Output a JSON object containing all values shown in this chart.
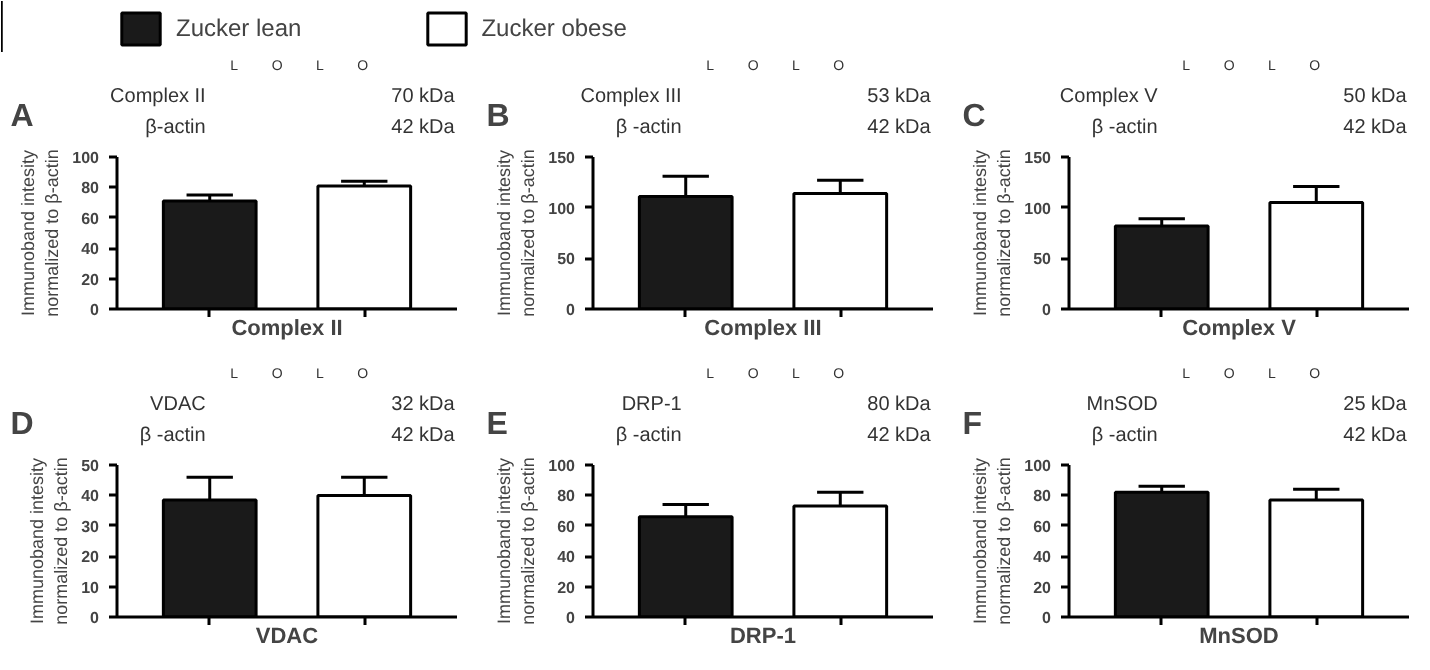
{
  "chart_data": [
    {
      "type": "bar",
      "title": "A",
      "xlabel": "Complex II",
      "ylabel": "Immunoband intesity\nnormalized to β-actin",
      "categories": [
        null,
        null
      ],
      "legend": "top",
      "series": [
        {
          "name": "Zucker lean",
          "color": "#1a1a1a",
          "values": [
            71,
            null
          ],
          "errors": [
            [
              71,
              75
            ],
            null
          ]
        },
        {
          "name": "Zucker obese",
          "color": "#ffffff",
          "values": [
            null,
            81
          ],
          "errors": [
            null,
            [
              81,
              84
            ]
          ]
        }
      ],
      "ylim": [
        0,
        100
      ],
      "yticks": [
        0,
        20,
        40,
        60,
        80,
        100
      ],
      "annotations": [
        "Complex II",
        "β-actin",
        "70 kDa",
        "42 kDa",
        "L",
        "O",
        "L",
        "O"
      ]
    },
    {
      "type": "bar",
      "title": "B",
      "xlabel": "Complex III",
      "ylabel": "Immunoband intesity\nnormalized to β-actin",
      "categories": [
        null,
        null
      ],
      "series": [
        {
          "color": "#1a1a1a",
          "values": [
            111,
            null
          ],
          "errors": [
            [
              111,
              131
            ],
            null
          ]
        },
        {
          "color": "#ffffff",
          "values": [
            null,
            114
          ],
          "errors": [
            null,
            [
              114,
              127
            ]
          ]
        }
      ],
      "ylim": [
        0,
        150
      ],
      "yticks": [
        0,
        50,
        100,
        150
      ],
      "annotations": [
        "Complex III",
        "β -actin",
        "53 kDa",
        "42 kDa",
        "L",
        "O",
        "L",
        "O"
      ]
    },
    {
      "type": "bar",
      "title": "C",
      "xlabel": "Complex V",
      "ylabel": "Immunoband intesity\nnormalized to β-actin",
      "categories": [
        null,
        null
      ],
      "series": [
        {
          "color": "#1a1a1a",
          "values": [
            82,
            null
          ],
          "errors": [
            [
              82,
              89
            ],
            null
          ]
        },
        {
          "color": "#ffffff",
          "values": [
            null,
            105
          ],
          "errors": [
            null,
            [
              105,
              121
            ]
          ]
        }
      ],
      "ylim": [
        0,
        150
      ],
      "yticks": [
        0,
        50,
        100,
        150
      ],
      "annotations": [
        "Complex V",
        "β -actin",
        "50 kDa",
        "42 kDa",
        "L",
        "O",
        "L",
        "O"
      ]
    },
    {
      "type": "bar",
      "title": "D",
      "xlabel": "VDAC",
      "ylabel": "Immunoband intesity\nnormalized to β-actin",
      "categories": [
        null,
        null
      ],
      "series": [
        {
          "color": "#1a1a1a",
          "values": [
            38.5,
            null
          ],
          "errors": [
            [
              38.5,
              46
            ],
            null
          ]
        },
        {
          "color": "#ffffff",
          "values": [
            null,
            40
          ],
          "errors": [
            null,
            [
              40,
              46
            ]
          ]
        }
      ],
      "ylim": [
        0,
        50
      ],
      "yticks": [
        0,
        10,
        20,
        30,
        40,
        50
      ],
      "annotations": [
        "VDAC",
        "β -actin",
        "32 kDa",
        "42 kDa",
        "L",
        "O",
        "L",
        "O"
      ]
    },
    {
      "type": "bar",
      "title": "E",
      "xlabel": "DRP-1",
      "ylabel": "Immunoband intesity\nnormalized to β-actin",
      "categories": [
        null,
        null
      ],
      "series": [
        {
          "color": "#1a1a1a",
          "values": [
            66,
            null
          ],
          "errors": [
            [
              66,
              74
            ],
            null
          ]
        },
        {
          "color": "#ffffff",
          "values": [
            null,
            73
          ],
          "errors": [
            null,
            [
              73,
              82
            ]
          ]
        }
      ],
      "ylim": [
        0,
        100
      ],
      "yticks": [
        0,
        20,
        40,
        60,
        80,
        100
      ],
      "annotations": [
        "DRP-1",
        "β -actin",
        "80 kDa",
        "42 kDa",
        "L",
        "O",
        "L",
        "O"
      ]
    },
    {
      "type": "bar",
      "title": "F",
      "xlabel": "MnSOD",
      "ylabel": "Immunoband intesity\nnormalized to β-actin",
      "categories": [
        null,
        null
      ],
      "series": [
        {
          "color": "#1a1a1a",
          "values": [
            82,
            null
          ],
          "errors": [
            [
              82,
              86
            ],
            null
          ]
        },
        {
          "color": "#ffffff",
          "values": [
            null,
            77
          ],
          "errors": [
            null,
            [
              77,
              84
            ]
          ]
        }
      ],
      "ylim": [
        0,
        100
      ],
      "yticks": [
        0,
        20,
        40,
        60,
        80,
        100
      ],
      "annotations": [
        "MnSOD",
        "β -actin",
        "25 kDa",
        "42 kDa",
        "L",
        "O",
        "L",
        "O"
      ]
    }
  ]
}
